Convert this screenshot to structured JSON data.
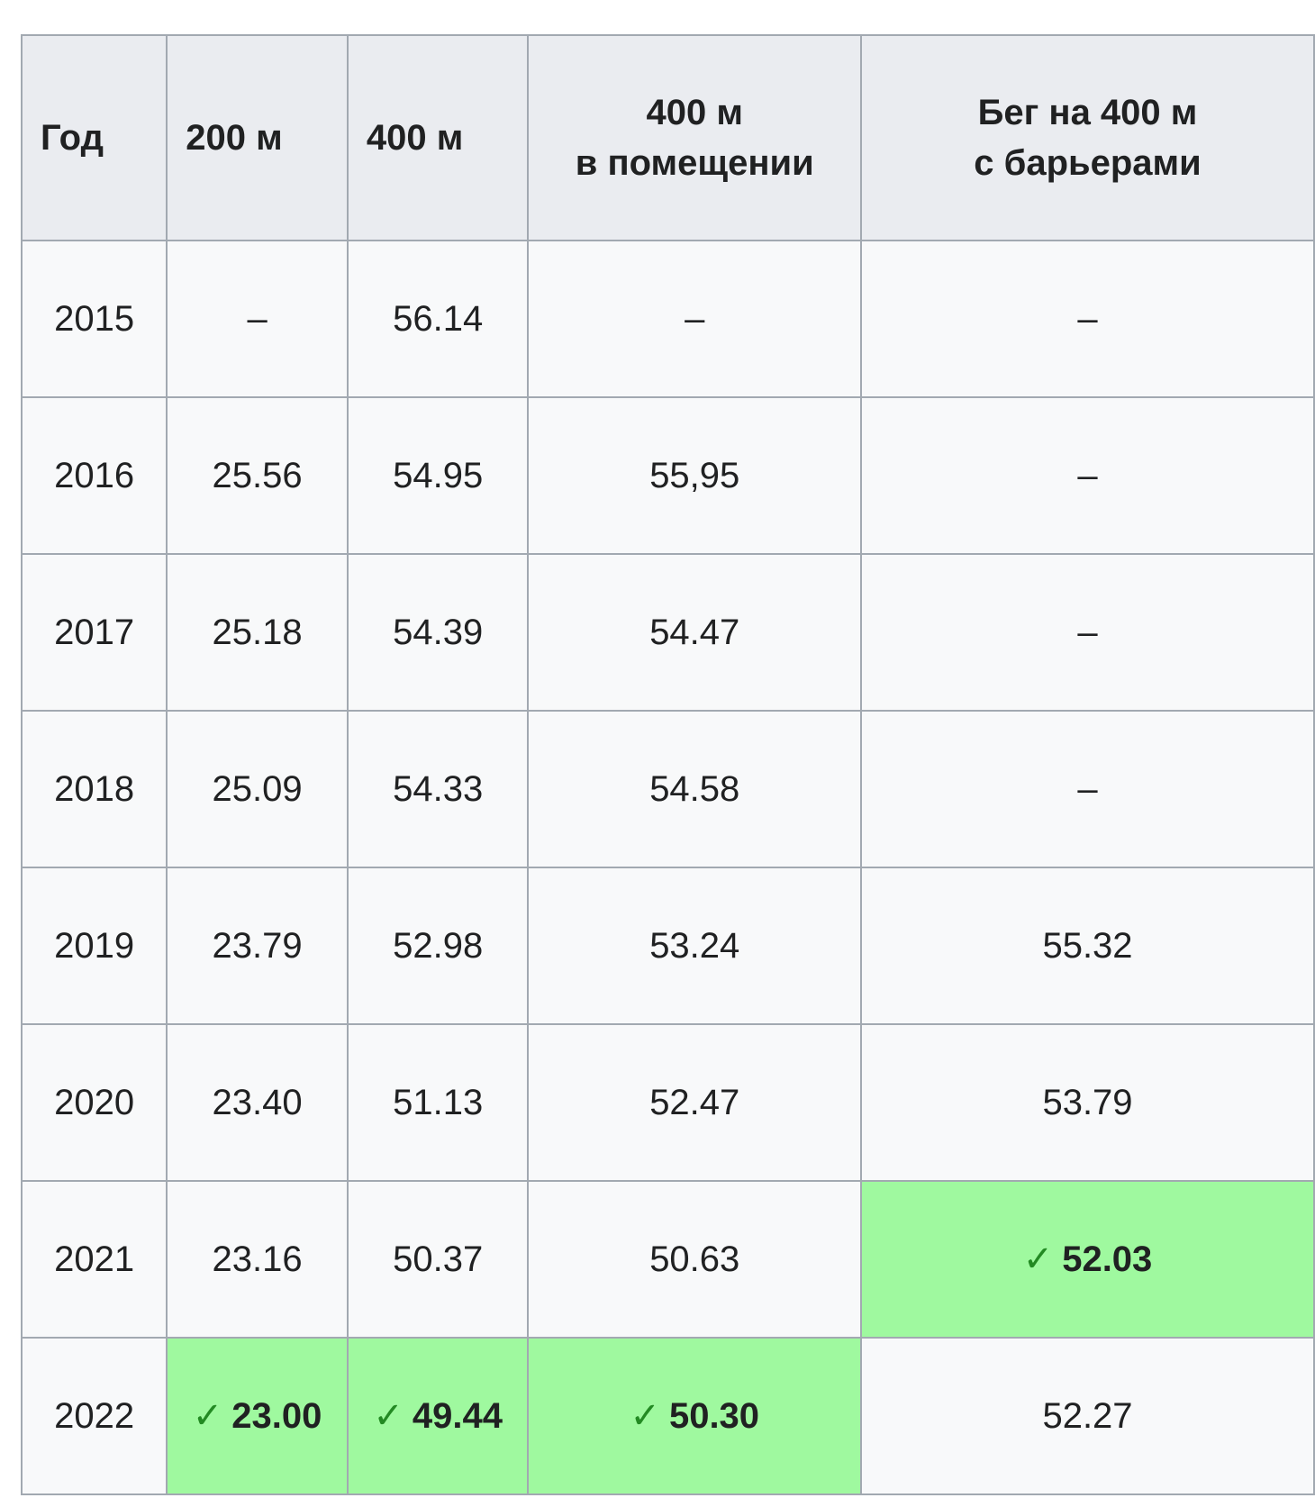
{
  "table": {
    "headers": {
      "year": "Год",
      "m200": "200 м",
      "m400": "400 м",
      "indoor_line1": "400 м",
      "indoor_line2": "в помещении",
      "hurdles_line1": "Бег на 400 м",
      "hurdles_line2": "с барьерами"
    },
    "check_glyph": "✓",
    "rows": [
      {
        "year": "2015",
        "m200": "–",
        "m400": "56.14",
        "indoor": "–",
        "hurdles": "–"
      },
      {
        "year": "2016",
        "m200": "25.56",
        "m400": "54.95",
        "indoor": "55,95",
        "hurdles": "–"
      },
      {
        "year": "2017",
        "m200": "25.18",
        "m400": "54.39",
        "indoor": "54.47",
        "hurdles": "–"
      },
      {
        "year": "2018",
        "m200": "25.09",
        "m400": "54.33",
        "indoor": "54.58",
        "hurdles": "–"
      },
      {
        "year": "2019",
        "m200": "23.79",
        "m400": "52.98",
        "indoor": "53.24",
        "hurdles": "55.32"
      },
      {
        "year": "2020",
        "m200": "23.40",
        "m400": "51.13",
        "indoor": "52.47",
        "hurdles": "53.79"
      },
      {
        "year": "2021",
        "m200": "23.16",
        "m400": "50.37",
        "indoor": "50.63",
        "hurdles": "52.03"
      },
      {
        "year": "2022",
        "m200": "23.00",
        "m400": "49.44",
        "indoor": "50.30",
        "hurdles": "52.27"
      }
    ],
    "highlight_color": "#9ff99f",
    "check_color": "#238a23"
  }
}
